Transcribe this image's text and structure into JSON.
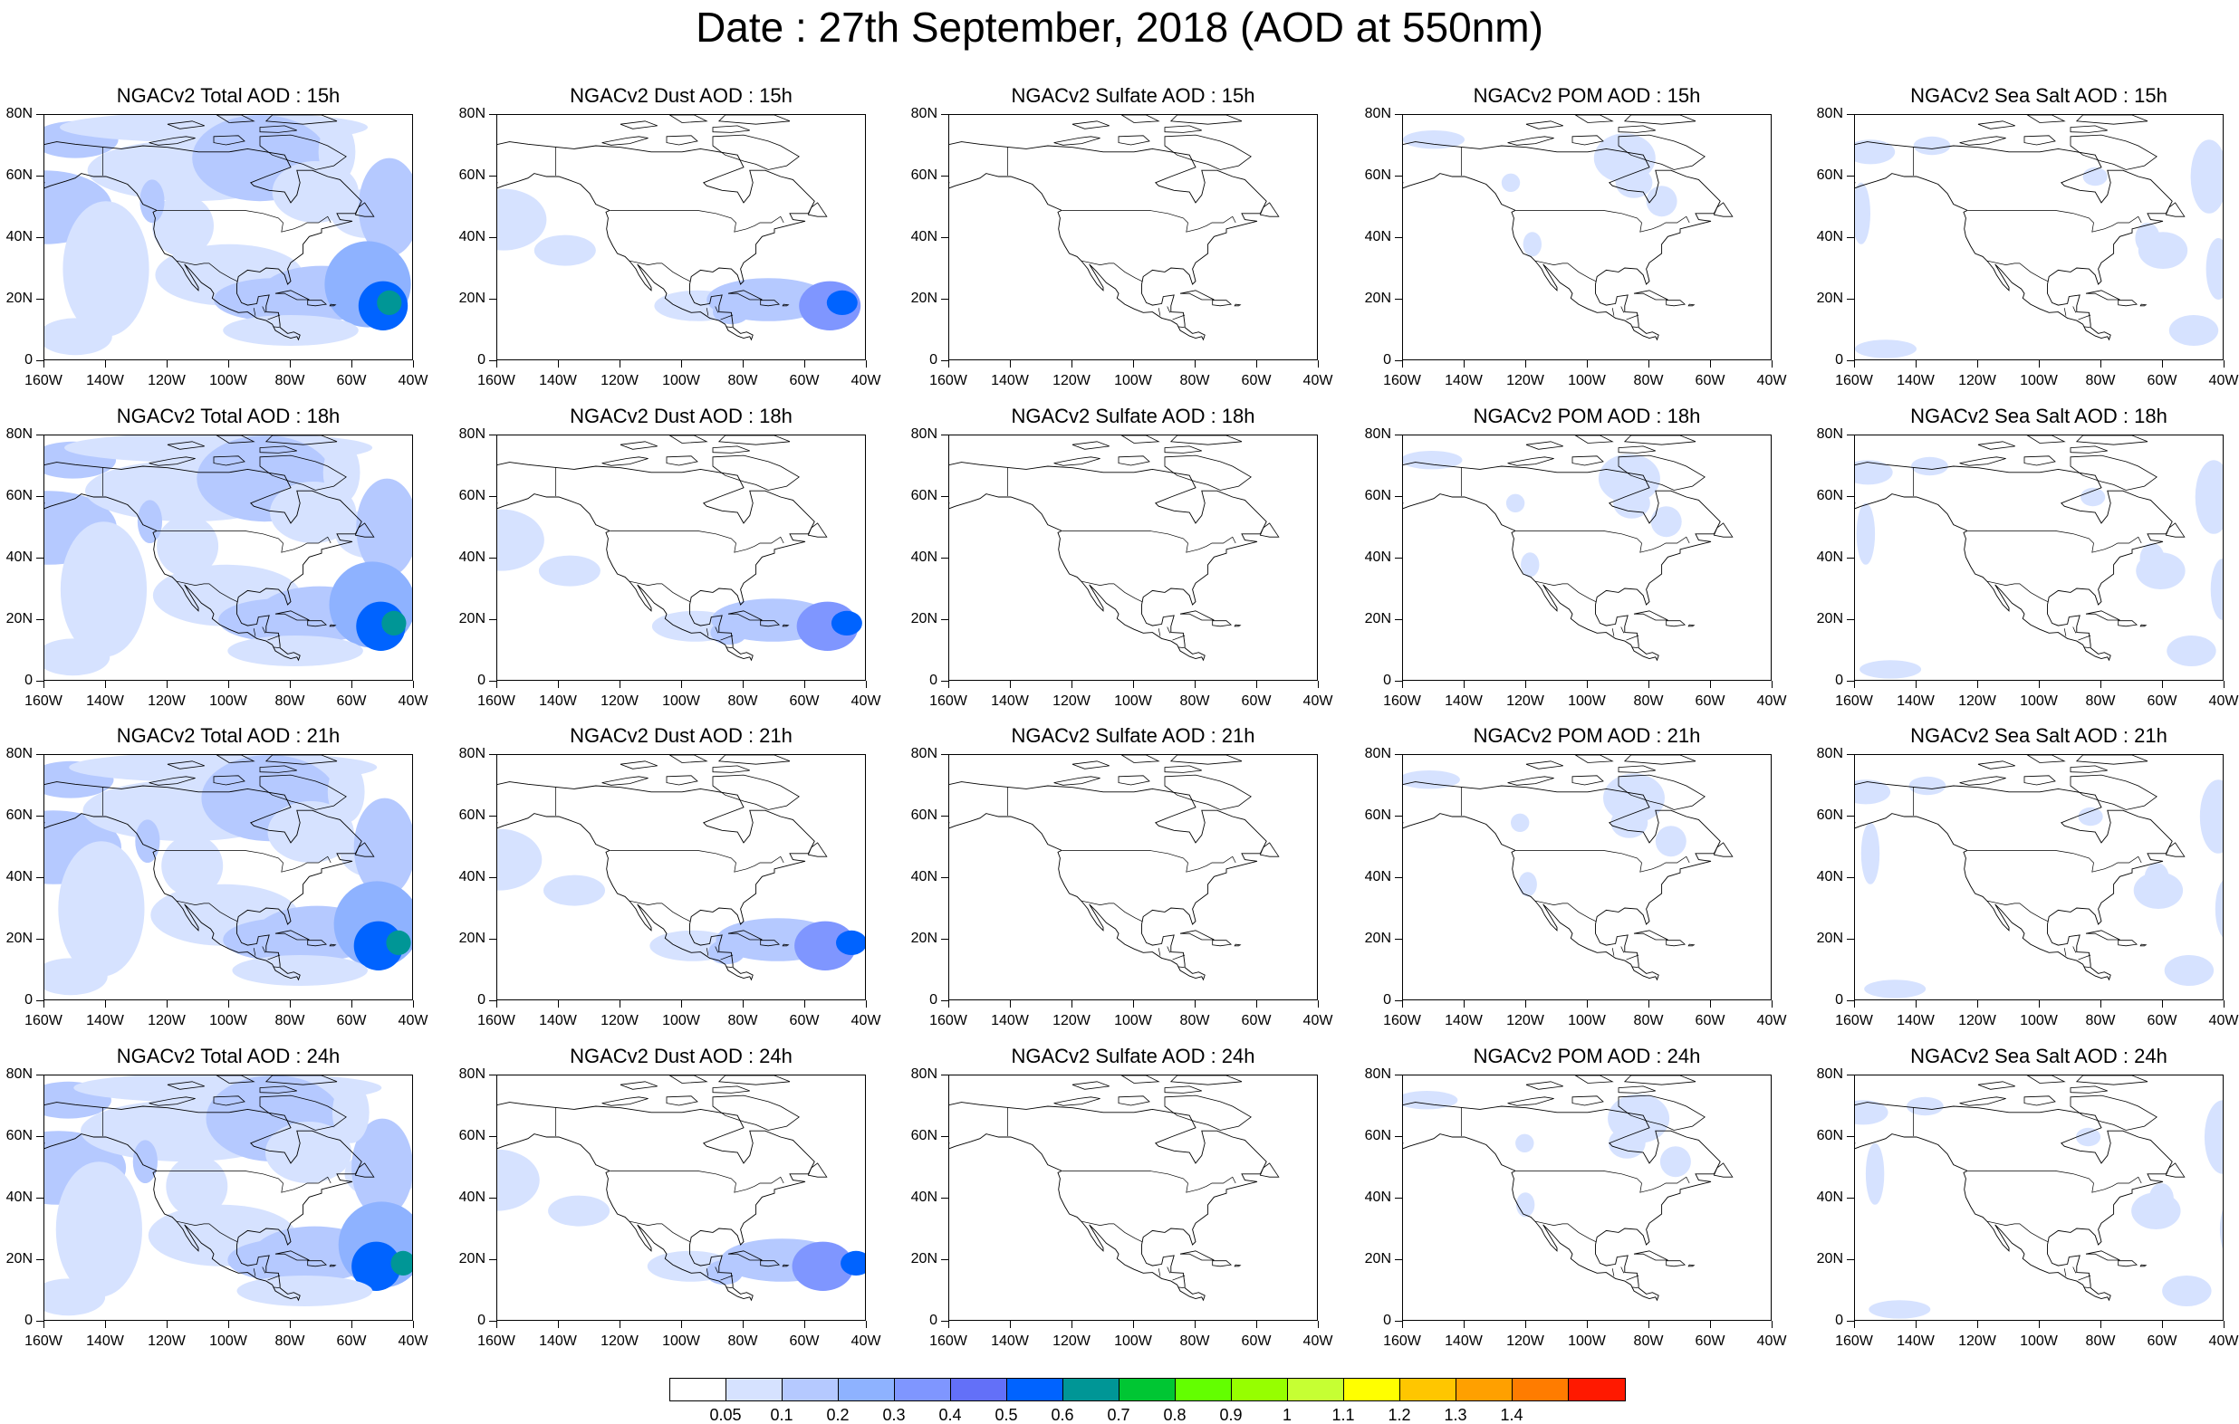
{
  "title": "Date : 27th September, 2018 (AOD at 550nm)",
  "rows": [
    {
      "hour": "15h",
      "panels": [
        {
          "species": "total",
          "title": "NGACv2 Total AOD : 15h"
        },
        {
          "species": "dust",
          "title": "NGACv2 Dust AOD : 15h"
        },
        {
          "species": "sulfate",
          "title": "NGACv2 Sulfate AOD : 15h"
        },
        {
          "species": "pom",
          "title": "NGACv2 POM AOD : 15h"
        },
        {
          "species": "seasalt",
          "title": "NGACv2 Sea Salt AOD : 15h"
        }
      ]
    },
    {
      "hour": "18h",
      "panels": [
        {
          "species": "total",
          "title": "NGACv2 Total AOD : 18h"
        },
        {
          "species": "dust",
          "title": "NGACv2 Dust AOD : 18h"
        },
        {
          "species": "sulfate",
          "title": "NGACv2 Sulfate AOD : 18h"
        },
        {
          "species": "pom",
          "title": "NGACv2 POM AOD : 18h"
        },
        {
          "species": "seasalt",
          "title": "NGACv2 Sea Salt AOD : 18h"
        }
      ]
    },
    {
      "hour": "21h",
      "panels": [
        {
          "species": "total",
          "title": "NGACv2 Total AOD : 21h"
        },
        {
          "species": "dust",
          "title": "NGACv2 Dust AOD : 21h"
        },
        {
          "species": "sulfate",
          "title": "NGACv2 Sulfate AOD : 21h"
        },
        {
          "species": "pom",
          "title": "NGACv2 POM AOD : 21h"
        },
        {
          "species": "seasalt",
          "title": "NGACv2 Sea Salt AOD : 21h"
        }
      ]
    },
    {
      "hour": "24h",
      "panels": [
        {
          "species": "total",
          "title": "NGACv2 Total AOD : 24h"
        },
        {
          "species": "dust",
          "title": "NGACv2 Dust AOD : 24h"
        },
        {
          "species": "sulfate",
          "title": "NGACv2 Sulfate AOD : 24h"
        },
        {
          "species": "pom",
          "title": "NGACv2 POM AOD : 24h"
        },
        {
          "species": "seasalt",
          "title": "NGACv2 Sea Salt  AOD : 24h"
        }
      ]
    }
  ],
  "map_axes": {
    "lon_labels": [
      "160W",
      "140W",
      "120W",
      "100W",
      "80W",
      "60W",
      "40W"
    ],
    "lat_labels": [
      "80N",
      "60N",
      "40N",
      "20N",
      "0"
    ],
    "lon_range": [
      -160,
      -40
    ],
    "lat_range": [
      0,
      80
    ]
  },
  "colorbar": {
    "colors": [
      "#ffffff",
      "#d6e2ff",
      "#b5c9ff",
      "#8eb2ff",
      "#7f96ff",
      "#6370f8",
      "#0063ff",
      "#009696",
      "#00c633",
      "#63ff00",
      "#96ff00",
      "#c6ff33",
      "#ffff00",
      "#ffc600",
      "#ffa000",
      "#ff7c00",
      "#ff1900"
    ],
    "labels": [
      "0.05",
      "0.1",
      "0.2",
      "0.3",
      "0.4",
      "0.5",
      "0.6",
      "0.7",
      "0.8",
      "0.9",
      "1",
      "1.1",
      "1.2",
      "1.3",
      "1.4"
    ]
  }
}
